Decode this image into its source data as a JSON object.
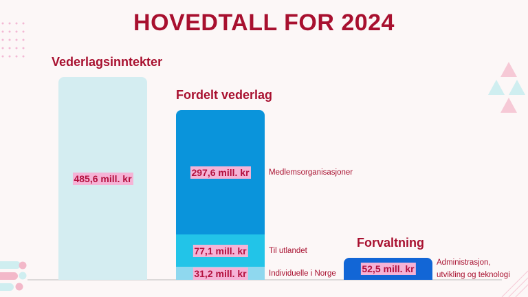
{
  "chart_data": {
    "type": "stacked-columns",
    "title": "HOVEDTALL FOR 2024",
    "groups": [
      {
        "title": "Vederlagsinntekter",
        "segments": [
          {
            "value": 485.6,
            "value_label": "485,6 mill. kr",
            "color": "#d4edf1"
          }
        ]
      },
      {
        "title": "Fordelt vederlag",
        "segments": [
          {
            "name": "Individuelle i Norge",
            "value": 31.2,
            "value_label": "31,2 mill. kr",
            "color": "#8fd8ef"
          },
          {
            "name": "Til utlandet",
            "value": 77.1,
            "value_label": "77,1 mill. kr",
            "color": "#22c4e8"
          },
          {
            "name": "Medlemsorganisasjoner",
            "value": 297.6,
            "value_label": "297,6 mill. kr",
            "color": "#0a94db"
          }
        ]
      },
      {
        "title": "Forvaltning",
        "segments": [
          {
            "name": "Administrasjon, utvikling og teknologi",
            "value": 52.5,
            "value_label": "52,5 mill. kr",
            "color": "#1266d6"
          }
        ]
      }
    ]
  }
}
